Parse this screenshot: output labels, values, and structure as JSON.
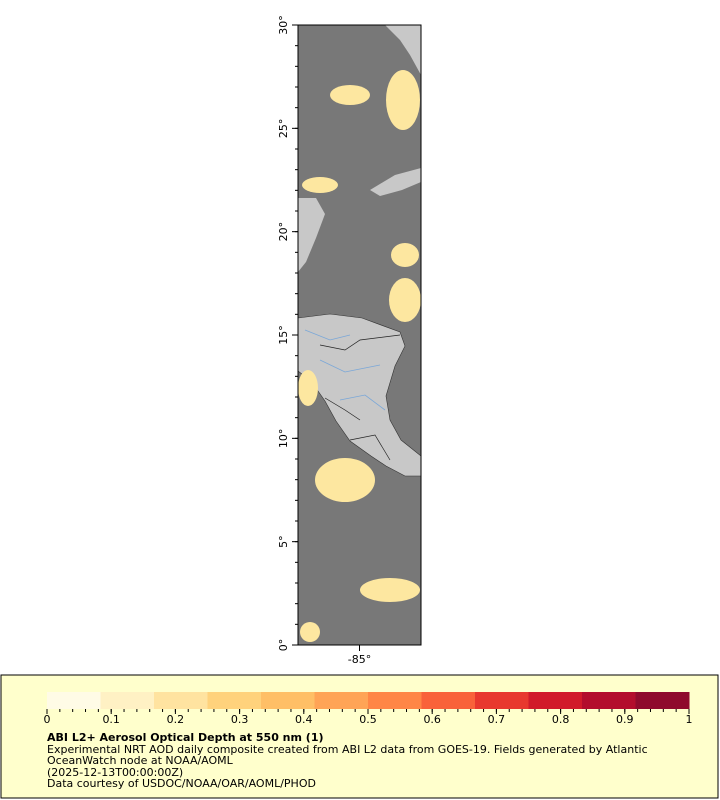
{
  "map": {
    "ylim": [
      0,
      30
    ],
    "xlim": [
      -88,
      -82
    ],
    "lat_ticks": [
      {
        "value": 0,
        "label": "0°"
      },
      {
        "value": 5,
        "label": "5°"
      },
      {
        "value": 10,
        "label": "10°"
      },
      {
        "value": 15,
        "label": "15°"
      },
      {
        "value": 20,
        "label": "20°"
      },
      {
        "value": 25,
        "label": "25°"
      },
      {
        "value": 30,
        "label": "30°"
      }
    ],
    "lon_ticks": [
      {
        "value": -85,
        "label": "-85°"
      }
    ]
  },
  "colorbar": {
    "lim": [
      0,
      1
    ],
    "ticks": [
      0,
      0.1,
      0.2,
      0.3,
      0.4,
      0.5,
      0.6,
      0.7,
      0.8,
      0.9,
      1
    ],
    "colors": [
      "#fffbe6",
      "#fff1c4",
      "#ffe3a0",
      "#ffd27c",
      "#ffbf66",
      "#ffa456",
      "#ff8646",
      "#f9623a",
      "#e8382e",
      "#d11a2a",
      "#b30d2c",
      "#8f0a2c"
    ]
  },
  "legend": {
    "title": "ABI L2+ Aerosol Optical Depth at 550 nm (1)",
    "lines": [
      "Experimental NRT AOD daily composite created from ABI L2 data from GOES-19. Fields generated by Atlantic",
      "OceanWatch node at NOAA/AOML",
      "(2025-12-13T00:00:00Z)",
      "Data courtesy of USDOC/NOAA/OAR/AOML/PHOD"
    ]
  }
}
